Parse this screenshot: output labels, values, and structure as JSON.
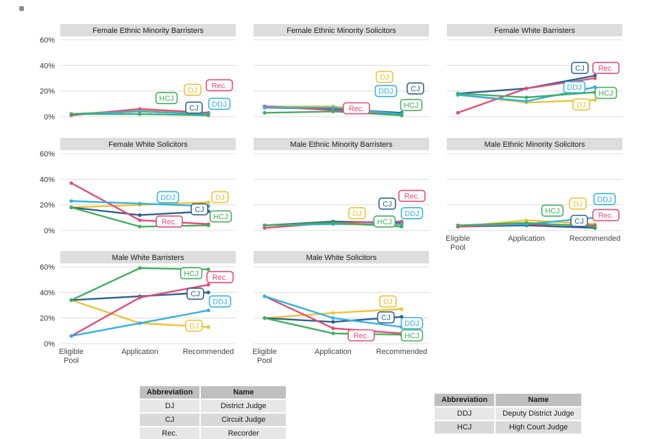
{
  "palette": {
    "DJ": "#f0c12e",
    "CJ": "#2a6191",
    "Rec.": "#e64a72",
    "DDJ": "#2eb1e6",
    "HCJ": "#41ae5e"
  },
  "chart_data": {
    "type": "line",
    "unit": "%",
    "x_categories": [
      "Eligible Pool",
      "Application",
      "Recommended"
    ],
    "x_tick_lines": [
      [
        "Eligible",
        "Pool"
      ],
      [
        "Application"
      ],
      [
        "Recommended"
      ]
    ],
    "y_ticks": [
      0,
      20,
      40,
      60
    ],
    "y_tick_labels": [
      "0%",
      "20%",
      "40%",
      "60%"
    ],
    "ylim": [
      0,
      65
    ],
    "grid": "horizontal",
    "series_order": [
      "DJ",
      "CJ",
      "Rec.",
      "DDJ",
      "HCJ"
    ],
    "panels": [
      {
        "title": "Female Ethnic Minority Barristers",
        "row": 0,
        "col": 0,
        "y_labels": true,
        "x_labels": false,
        "series": [
          {
            "name": "DJ",
            "values": [
              2,
              5,
              3
            ],
            "label": [
              1.77,
              21
            ]
          },
          {
            "name": "CJ",
            "values": [
              2,
              4,
              2
            ],
            "label": [
              1.79,
              7
            ]
          },
          {
            "name": "Rec.",
            "values": [
              1,
              6,
              3
            ],
            "label": [
              2.16,
              24.5
            ]
          },
          {
            "name": "DDJ",
            "values": [
              2,
              4,
              2
            ],
            "label": [
              2.16,
              10
            ]
          },
          {
            "name": "HCJ",
            "values": [
              2,
              2,
              1
            ],
            "label": [
              1.39,
              14.5
            ]
          }
        ]
      },
      {
        "title": "Female Ethnic Minority Solicitors",
        "row": 0,
        "col": 1,
        "y_labels": false,
        "x_labels": false,
        "series": [
          {
            "name": "DJ",
            "values": [
              8,
              8,
              2
            ],
            "label": [
              1.75,
              31
            ]
          },
          {
            "name": "CJ",
            "values": [
              7,
              6,
              3
            ],
            "label": [
              2.2,
              22
            ]
          },
          {
            "name": "Rec.",
            "values": [
              8,
              5,
              1
            ],
            "label": [
              1.34,
              6.5
            ]
          },
          {
            "name": "DDJ",
            "values": [
              7,
              7,
              2
            ],
            "label": [
              1.77,
              20
            ]
          },
          {
            "name": "HCJ",
            "values": [
              3,
              4,
              1
            ],
            "label": [
              2.14,
              9
            ]
          }
        ]
      },
      {
        "title": "Female White Barristers",
        "row": 0,
        "col": 2,
        "y_labels": false,
        "x_labels": false,
        "series": [
          {
            "name": "DJ",
            "values": [
              17,
              11,
              13
            ],
            "label": [
              1.8,
              9.5
            ]
          },
          {
            "name": "CJ",
            "values": [
              18,
              22,
              32
            ],
            "label": [
              1.78,
              38
            ]
          },
          {
            "name": "Rec.",
            "values": [
              3,
              22,
              30
            ],
            "label": [
              2.16,
              38
            ]
          },
          {
            "name": "DDJ",
            "values": [
              17,
              12,
              23
            ],
            "label": [
              1.7,
              23
            ]
          },
          {
            "name": "HCJ",
            "values": [
              18,
              15,
              19
            ],
            "label": [
              2.16,
              18.5
            ]
          }
        ]
      },
      {
        "title": "Female White Solicitors",
        "row": 1,
        "col": 0,
        "y_labels": true,
        "x_labels": false,
        "series": [
          {
            "name": "DJ",
            "values": [
              18,
              20,
              22
            ],
            "label": [
              2.17,
              26
            ]
          },
          {
            "name": "CJ",
            "values": [
              18,
              12,
              15
            ],
            "label": [
              1.87,
              16.5
            ]
          },
          {
            "name": "Rec.",
            "values": [
              37,
              8,
              5
            ],
            "label": [
              1.43,
              7
            ]
          },
          {
            "name": "DDJ",
            "values": [
              23,
              21,
              19
            ],
            "label": [
              1.41,
              26
            ]
          },
          {
            "name": "HCJ",
            "values": [
              18,
              3,
              4
            ],
            "label": [
              2.18,
              11
            ]
          }
        ]
      },
      {
        "title": "Male Ethnic Minority Barristers",
        "row": 1,
        "col": 1,
        "y_labels": false,
        "x_labels": false,
        "series": [
          {
            "name": "DJ",
            "values": [
              4,
              5,
              4
            ],
            "label": [
              1.35,
              13.5
            ]
          },
          {
            "name": "CJ",
            "values": [
              4,
              7,
              6
            ],
            "label": [
              1.79,
              21
            ]
          },
          {
            "name": "Rec.",
            "values": [
              2,
              6,
              7
            ],
            "label": [
              2.15,
              27
            ]
          },
          {
            "name": "DDJ",
            "values": [
              4,
              5,
              5
            ],
            "label": [
              2.15,
              13.5
            ]
          },
          {
            "name": "HCJ",
            "values": [
              4,
              6,
              3
            ],
            "label": [
              1.75,
              7
            ]
          }
        ]
      },
      {
        "title": "Male Ethnic Minority Solicitors",
        "row": 1,
        "col": 2,
        "y_labels": false,
        "x_labels": true,
        "series": [
          {
            "name": "DJ",
            "values": [
              3,
              8,
              5
            ],
            "label": [
              1.75,
              21
            ]
          },
          {
            "name": "CJ",
            "values": [
              3,
              4,
              2
            ],
            "label": [
              1.77,
              7.5
            ]
          },
          {
            "name": "Rec.",
            "values": [
              3,
              5,
              4
            ],
            "label": [
              2.16,
              12
            ]
          },
          {
            "name": "DDJ",
            "values": [
              4,
              5,
              10
            ],
            "label": [
              2.14,
              24.5
            ]
          },
          {
            "name": "HCJ",
            "values": [
              4,
              6,
              3
            ],
            "label": [
              1.38,
              15.5
            ]
          }
        ]
      },
      {
        "title": "Male White Barristers",
        "row": 2,
        "col": 0,
        "y_labels": true,
        "x_labels": true,
        "series": [
          {
            "name": "DJ",
            "values": [
              34,
              16,
              13
            ],
            "label": [
              1.79,
              14
            ]
          },
          {
            "name": "CJ",
            "values": [
              34,
              37,
              40
            ],
            "label": [
              1.81,
              39
            ]
          },
          {
            "name": "Rec.",
            "values": [
              6,
              36,
              46
            ],
            "label": [
              2.17,
              52
            ]
          },
          {
            "name": "DDJ",
            "values": [
              6,
              16,
              26
            ],
            "label": [
              2.17,
              33
            ]
          },
          {
            "name": "HCJ",
            "values": [
              34,
              59,
              58
            ],
            "label": [
              1.75,
              55
            ]
          }
        ]
      },
      {
        "title": "Male White Solicitors",
        "row": 2,
        "col": 1,
        "y_labels": false,
        "x_labels": true,
        "series": [
          {
            "name": "DJ",
            "values": [
              20,
              24,
              27
            ],
            "label": [
              1.8,
              33
            ]
          },
          {
            "name": "CJ",
            "values": [
              20,
              17,
              21
            ],
            "label": [
              1.77,
              20.5
            ]
          },
          {
            "name": "Rec.",
            "values": [
              37,
              12,
              8
            ],
            "label": [
              1.41,
              6.5
            ]
          },
          {
            "name": "DDJ",
            "values": [
              37,
              20,
              13
            ],
            "label": [
              2.15,
              16
            ]
          },
          {
            "name": "HCJ",
            "values": [
              20,
              8,
              7
            ],
            "label": [
              2.15,
              6.5
            ]
          }
        ]
      }
    ]
  },
  "tables": [
    {
      "headers": [
        "Abbreviation",
        "Name"
      ],
      "rows": [
        [
          "DJ",
          "District Judge"
        ],
        [
          "CJ",
          "Circuit Judge"
        ],
        [
          "Rec.",
          "Recorder"
        ]
      ]
    },
    {
      "headers": [
        "Abbreviation",
        "Name"
      ],
      "rows": [
        [
          "DDJ",
          "Deputy District Judge"
        ],
        [
          "HCJ",
          "High Court Judge"
        ]
      ]
    }
  ]
}
